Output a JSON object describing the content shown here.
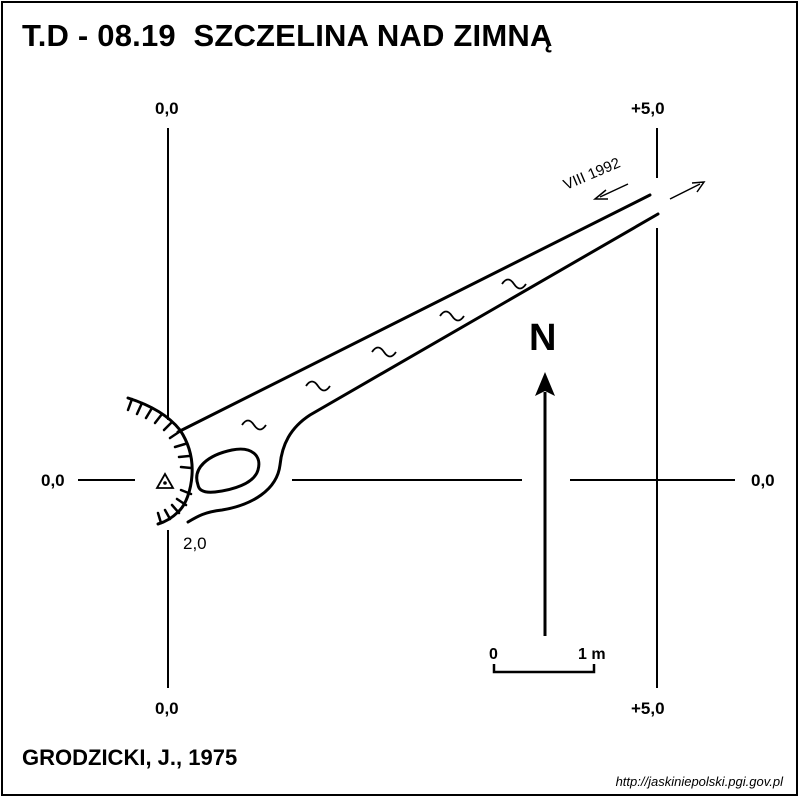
{
  "header": {
    "title": "T.D - 08.19  SZCZELINA NAD ZIMNĄ"
  },
  "grid": {
    "left_top_label": "0,0",
    "left_bottom_label": "0,0",
    "right_top_label": "+5,0",
    "right_bottom_label": "+5,0",
    "mid_left_label": "0,0",
    "mid_right_label": "0,0"
  },
  "map": {
    "survey_note": "VIII 1992",
    "depth_label": "2,0",
    "north_label": "N",
    "scale_start": "0",
    "scale_end": "1 m"
  },
  "footer": {
    "author": "GRODZICKI, J., 1975",
    "source_url": "http://jaskiniepolski.pgi.gov.pl"
  }
}
